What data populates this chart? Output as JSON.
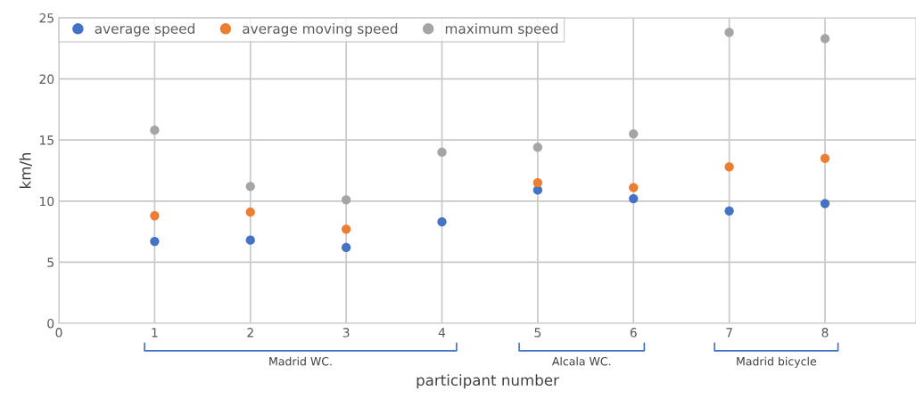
{
  "chart_data": {
    "type": "scatter",
    "xlabel": "participant number",
    "ylabel": "km/h",
    "x": [
      1,
      2,
      3,
      4,
      5,
      6,
      7,
      8
    ],
    "series": [
      {
        "name": "average speed",
        "color": "#4472c4",
        "values": [
          6.7,
          6.8,
          6.2,
          8.3,
          10.9,
          10.2,
          9.2,
          9.8
        ]
      },
      {
        "name": "average moving speed",
        "color": "#ed7d31",
        "values": [
          8.8,
          9.1,
          7.7,
          null,
          11.5,
          11.1,
          12.8,
          13.5
        ]
      },
      {
        "name": "maximum speed",
        "color": "#a5a5a5",
        "values": [
          15.8,
          11.2,
          10.1,
          14.0,
          14.4,
          15.5,
          23.8,
          23.3
        ]
      }
    ],
    "xlim": [
      0,
      8.95
    ],
    "xticks": [
      0,
      1,
      2,
      3,
      4,
      5,
      6,
      7,
      8
    ],
    "ylim": [
      0,
      25
    ],
    "yticks": [
      0,
      5,
      10,
      15,
      20,
      25
    ],
    "grid": true,
    "legend": "top left",
    "marker": "circle",
    "annotations": [
      "Madrid WC.",
      "Alcala WC.",
      "Madrid bicycle"
    ]
  }
}
